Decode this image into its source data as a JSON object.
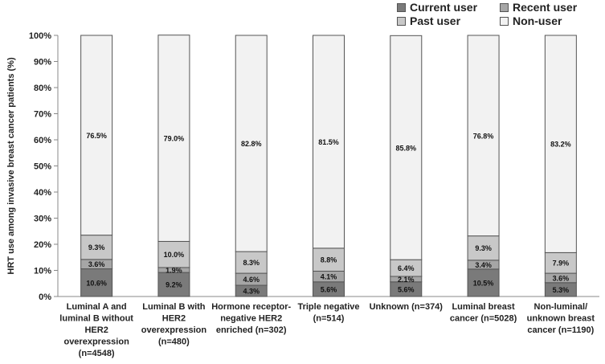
{
  "chart_data": {
    "type": "bar",
    "stacked": true,
    "ylabel": "HRT use among invasive breast cancer patients (%)",
    "xlabel": "",
    "ylim": [
      0,
      100
    ],
    "yticks": [
      "0%",
      "10%",
      "20%",
      "30%",
      "40%",
      "50%",
      "60%",
      "70%",
      "80%",
      "90%",
      "100%"
    ],
    "grid": false,
    "legend_position": "top-right",
    "categories": [
      [
        "Luminal A and",
        "luminal B without",
        "HER2",
        "overexpression",
        "(n=4548)"
      ],
      [
        "Luminal B with",
        "HER2",
        "overexpression",
        "(n=480)"
      ],
      [
        "Hormone receptor-",
        "negative HER2",
        "enriched  (n=302)"
      ],
      [
        "Triple negative",
        "(n=514)"
      ],
      [
        "Unknown (n=374)"
      ],
      [
        "Luminal breast",
        "cancer (n=5028)"
      ],
      [
        "Non-luminal/",
        "unknown breast",
        "cancer (n=1190)"
      ]
    ],
    "series": [
      {
        "name": "Current user",
        "color": "#7a7a7a",
        "values": [
          10.6,
          9.2,
          4.3,
          5.6,
          5.6,
          10.5,
          5.3
        ],
        "labels": [
          "10.6%",
          "9.2%",
          "4.3%",
          "5.6%",
          "5.6%",
          "10.5%",
          "5.3%"
        ]
      },
      {
        "name": "Recent user",
        "color": "#a6a6a6",
        "values": [
          3.6,
          1.9,
          4.6,
          4.1,
          2.1,
          3.4,
          3.6
        ],
        "labels": [
          "3.6%",
          "1.9%",
          "4.6%",
          "4.1%",
          "2.1%",
          "3.4%",
          "3.6%"
        ]
      },
      {
        "name": "Past user",
        "color": "#c8c8c8",
        "values": [
          9.3,
          10.0,
          8.3,
          8.8,
          6.4,
          9.3,
          7.9
        ],
        "labels": [
          "9.3%",
          "10.0%",
          "8.3%",
          "8.8%",
          "6.4%",
          "9.3%",
          "7.9%"
        ]
      },
      {
        "name": "Non-user",
        "color": "#f2f2f2",
        "values": [
          76.5,
          79.0,
          82.8,
          81.5,
          85.8,
          76.8,
          83.2
        ],
        "labels": [
          "76.5%",
          "79.0%",
          "82.8%",
          "81.5%",
          "85.8%",
          "76.8%",
          "83.2%"
        ]
      }
    ]
  }
}
